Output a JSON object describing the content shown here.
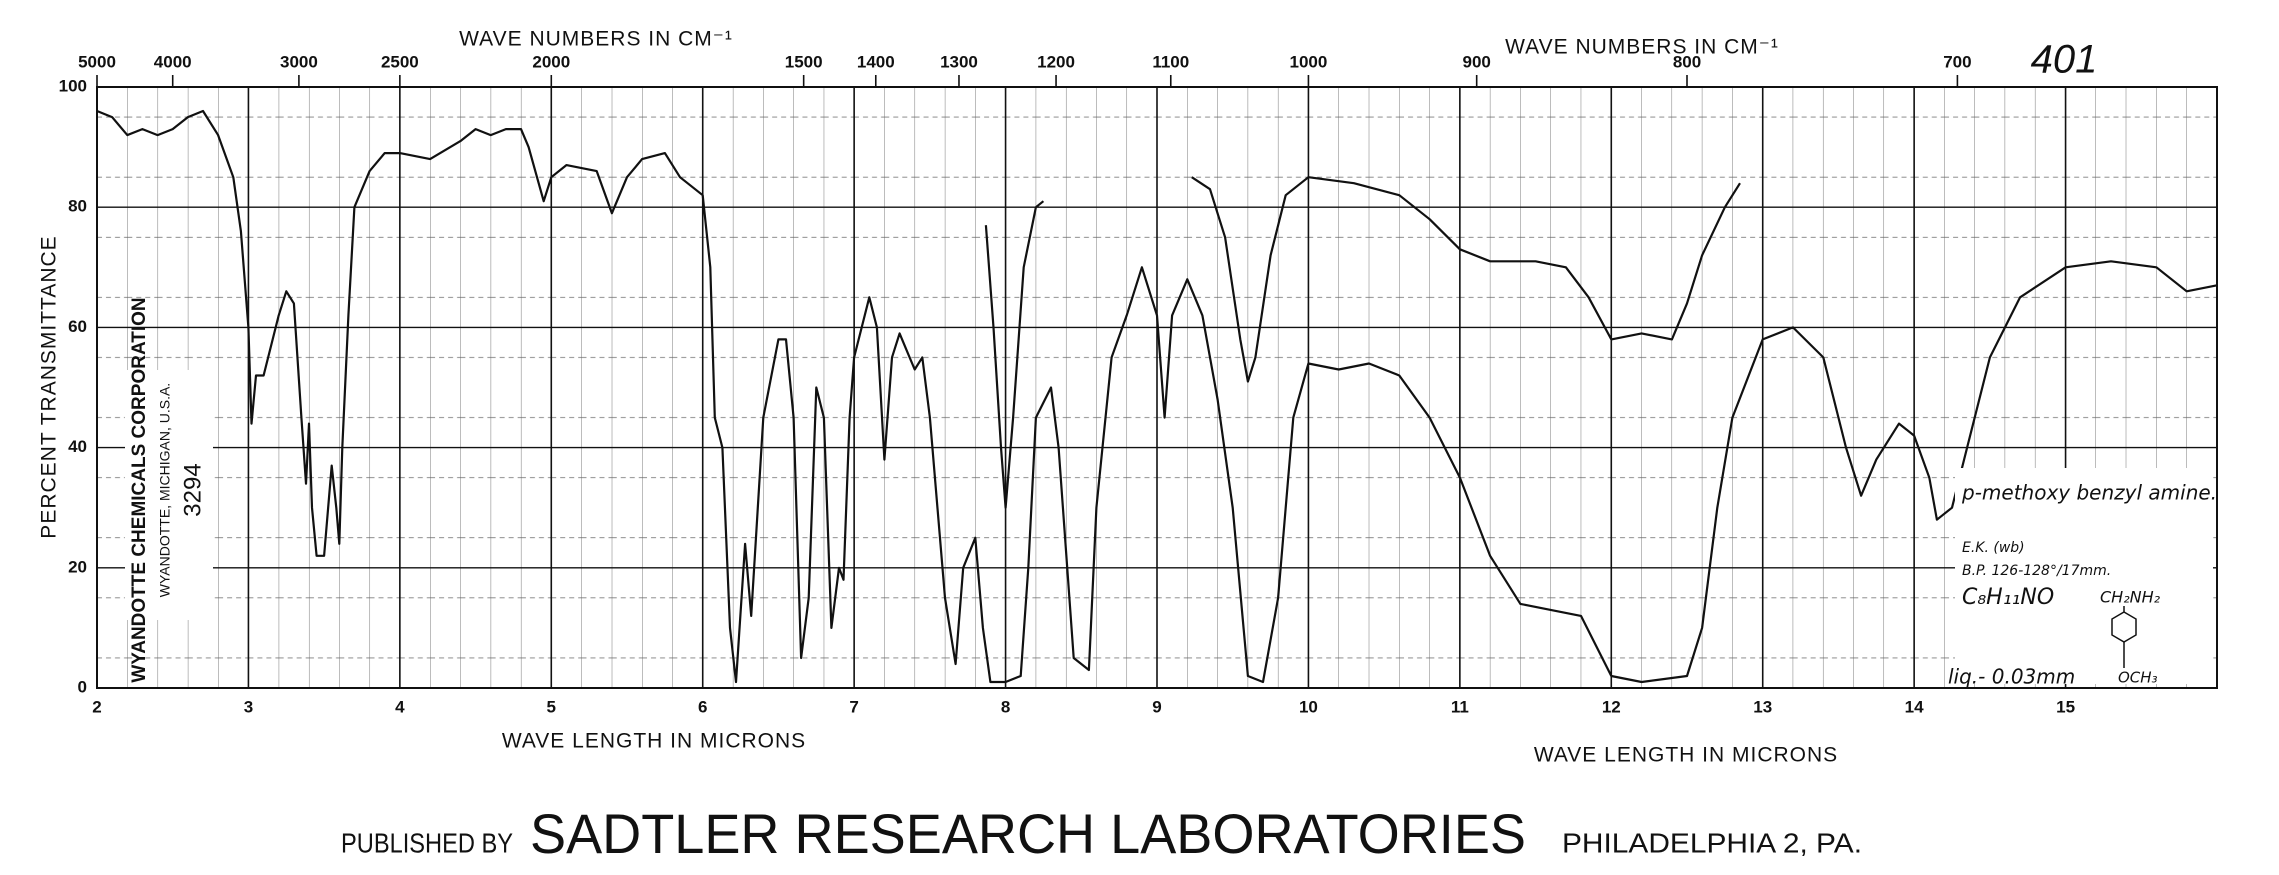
{
  "chart_data": {
    "type": "line",
    "chart_number": "401",
    "x_label": "WAVE LENGTH IN MICRONS",
    "x2_label": "WAVE NUMBERS IN CM⁻¹",
    "y_label": "PERCENT TRANSMITTANCE",
    "xlim": [
      2,
      16
    ],
    "xticks": [
      2,
      3,
      4,
      5,
      6,
      7,
      8,
      9,
      10,
      11,
      12,
      13,
      14,
      15
    ],
    "x2ticks": [
      5000,
      4000,
      3000,
      2500,
      2000,
      1500,
      1400,
      1300,
      1200,
      1100,
      1000,
      900,
      800,
      700
    ],
    "ylim": [
      0,
      100
    ],
    "yticks": [
      0,
      20,
      40,
      60,
      80,
      100
    ],
    "grid": true,
    "series": [
      {
        "color": "#111111",
        "x": [
          2.0,
          2.1,
          2.2,
          2.3,
          2.4,
          2.5,
          2.6,
          2.7,
          2.8,
          2.9,
          2.95,
          3.0,
          3.02,
          3.05,
          3.1,
          3.2,
          3.25,
          3.3,
          3.35,
          3.38,
          3.4,
          3.42,
          3.45,
          3.5,
          3.55,
          3.58,
          3.6,
          3.62,
          3.66,
          3.7,
          3.8,
          3.9,
          4.0,
          4.2,
          4.4,
          4.5,
          4.6,
          4.7,
          4.8,
          4.85,
          4.95,
          5.0,
          5.1,
          5.3,
          5.4,
          5.5,
          5.6,
          5.75,
          5.85,
          6.0,
          6.05,
          6.08,
          6.13,
          6.18,
          6.22,
          6.28,
          6.32,
          6.4,
          6.5,
          6.55,
          6.6,
          6.65,
          6.7,
          6.75,
          6.8,
          6.85,
          6.9,
          6.93,
          6.97,
          7.0,
          7.05,
          7.1,
          7.15,
          7.2,
          7.25,
          7.3,
          7.35,
          7.4,
          7.45,
          7.5,
          7.6,
          7.67,
          7.72,
          7.8,
          7.85,
          7.9,
          8.0,
          8.1,
          8.15,
          8.2,
          8.3,
          8.35,
          8.45,
          8.55,
          8.6,
          8.7,
          8.8,
          8.9,
          9.0,
          9.05,
          9.1,
          9.2,
          9.3,
          9.4,
          9.5,
          9.6,
          9.7,
          9.8,
          9.9,
          10.0,
          10.2,
          10.4,
          10.6,
          10.8,
          11.0,
          11.2,
          11.4,
          11.6,
          11.8,
          12.0,
          12.2,
          12.5,
          12.6,
          12.7,
          12.8,
          13.0,
          13.2,
          13.4,
          13.55,
          13.65,
          13.75,
          13.9,
          14.0,
          14.1,
          14.15,
          14.25,
          14.35,
          14.5,
          14.7,
          15.0,
          15.3,
          15.6,
          15.8,
          16.0
        ],
        "values": [
          96,
          95,
          92,
          93,
          92,
          93,
          95,
          96,
          92,
          85,
          76,
          60,
          44,
          52,
          52,
          62,
          66,
          64,
          45,
          34,
          44,
          30,
          22,
          22,
          37,
          30,
          24,
          40,
          62,
          80,
          86,
          89,
          89,
          88,
          91,
          93,
          92,
          93,
          93,
          90,
          81,
          85,
          87,
          86,
          79,
          85,
          88,
          89,
          85,
          82,
          70,
          45,
          40,
          10,
          1,
          24,
          12,
          45,
          58,
          58,
          45,
          5,
          15,
          50,
          45,
          10,
          20,
          18,
          45,
          55,
          60,
          65,
          60,
          38,
          55,
          59,
          56,
          53,
          55,
          45,
          15,
          4,
          20,
          25,
          10,
          1,
          1,
          2,
          20,
          45,
          50,
          40,
          5,
          3,
          30,
          55,
          62,
          70,
          62,
          45,
          62,
          68,
          62,
          48,
          30,
          2,
          1,
          15,
          45,
          54,
          53,
          54,
          52,
          45,
          35,
          22,
          14,
          13,
          12,
          2,
          1,
          2,
          10,
          30,
          45,
          58,
          60,
          55,
          40,
          32,
          38,
          44,
          42,
          35,
          28,
          30,
          40,
          55,
          65,
          70,
          71,
          70,
          66,
          67
        ]
      },
      {
        "color": "#111111",
        "x": [
          7.87,
          7.92,
          7.97,
          8.0,
          8.05,
          8.12,
          8.2,
          8.25,
          null,
          9.23,
          9.35,
          9.45,
          9.55,
          9.6,
          9.65,
          9.75,
          9.85,
          10.0,
          10.3,
          10.6,
          10.8,
          11.0,
          11.2,
          11.5,
          11.7,
          11.85,
          12.0,
          12.2,
          12.4,
          12.5,
          12.6,
          12.75,
          12.85
        ],
        "values": [
          77,
          60,
          40,
          30,
          45,
          70,
          80,
          81,
          null,
          85,
          83,
          75,
          58,
          51,
          55,
          72,
          82,
          85,
          84,
          82,
          78,
          73,
          71,
          71,
          70,
          65,
          58,
          59,
          58,
          64,
          72,
          80,
          84
        ]
      }
    ],
    "vendor": {
      "name": "WYANDOTTE CHEMICALS CORPORATION",
      "address": "WYANDOTTE, MICHIGAN, U.S.A.",
      "number": "3294"
    },
    "annotations": {
      "compound": "p-methoxy benzyl amine.",
      "source": "E.K. (wb)",
      "boiling_point": "B.P. 126-128°/17mm.",
      "formula": "C₈H₁₁NO",
      "substituent_top": "CH₂NH₂",
      "phase": "liq.- 0.03mm",
      "substituent_bottom": "OCH₃"
    },
    "footer": {
      "lead": "PUBLISHED BY",
      "main": "SADTLER RESEARCH LABORATORIES",
      "place": "PHILADELPHIA 2, PA."
    }
  }
}
